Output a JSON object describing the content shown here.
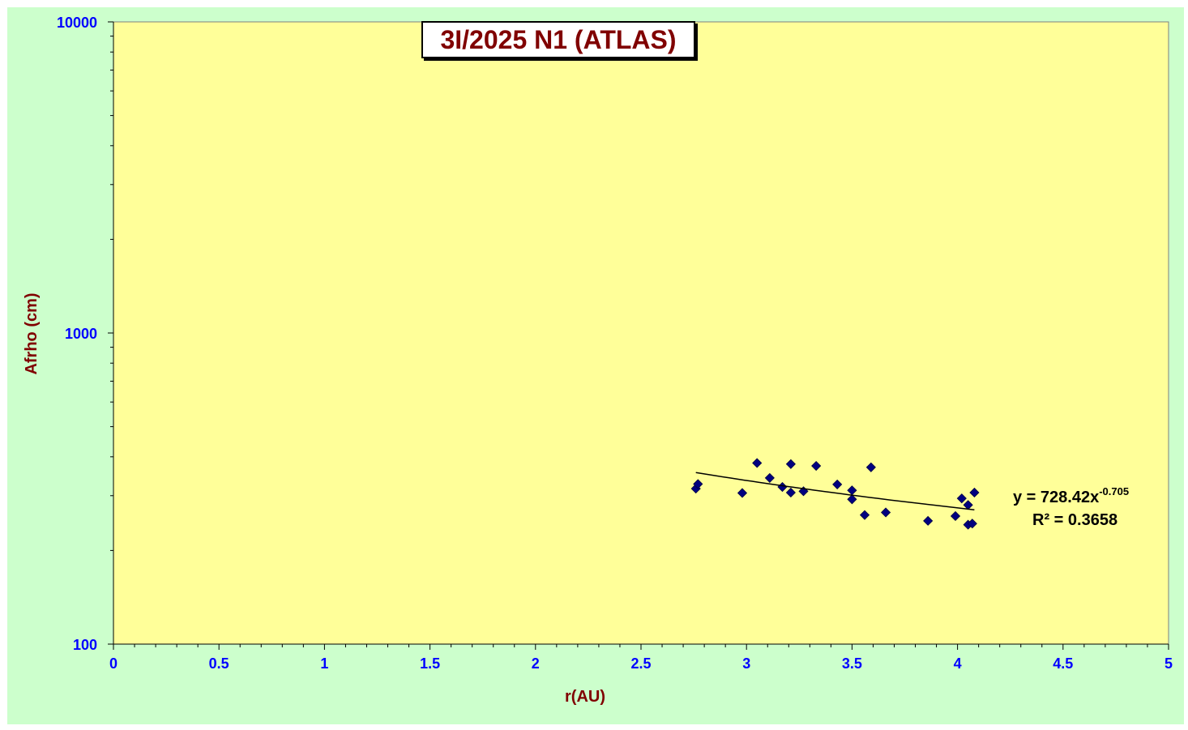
{
  "chart_data": {
    "type": "scatter",
    "title": "3I/2025 N1 (ATLAS)",
    "xlabel": "r(AU)",
    "ylabel": "Afrho (cm)",
    "xlim": [
      0,
      5
    ],
    "ylim": [
      100,
      10000
    ],
    "yscale": "log",
    "x_ticks": [
      "0",
      "0.5",
      "1",
      "1.5",
      "2",
      "2.5",
      "3",
      "3.5",
      "4",
      "4.5",
      "5"
    ],
    "y_ticks": [
      "100",
      "1000",
      "10000"
    ],
    "grid": false,
    "points": [
      {
        "x": 2.76,
        "y": 316
      },
      {
        "x": 2.77,
        "y": 327
      },
      {
        "x": 2.98,
        "y": 306
      },
      {
        "x": 3.05,
        "y": 382
      },
      {
        "x": 3.11,
        "y": 342
      },
      {
        "x": 3.17,
        "y": 320
      },
      {
        "x": 3.21,
        "y": 379
      },
      {
        "x": 3.21,
        "y": 307
      },
      {
        "x": 3.27,
        "y": 310
      },
      {
        "x": 3.33,
        "y": 374
      },
      {
        "x": 3.43,
        "y": 326
      },
      {
        "x": 3.5,
        "y": 312
      },
      {
        "x": 3.5,
        "y": 292
      },
      {
        "x": 3.56,
        "y": 260
      },
      {
        "x": 3.59,
        "y": 370
      },
      {
        "x": 3.66,
        "y": 265
      },
      {
        "x": 3.86,
        "y": 249
      },
      {
        "x": 3.99,
        "y": 258
      },
      {
        "x": 4.02,
        "y": 294
      },
      {
        "x": 4.05,
        "y": 280
      },
      {
        "x": 4.05,
        "y": 242
      },
      {
        "x": 4.07,
        "y": 244
      },
      {
        "x": 4.08,
        "y": 307
      }
    ],
    "trendline": {
      "type": "power",
      "coefficient": 728.42,
      "exponent": -0.705,
      "x_range": [
        2.76,
        4.08
      ],
      "equation_prefix": "y = 728.42x",
      "equation_exponent": "-0.705",
      "r_squared": "R² = 0.3658"
    },
    "colors": {
      "outer_background": "#ccffcc",
      "plot_background": "#ffff99",
      "marker": "#000080",
      "tick_label": "#0000ff",
      "axis_title": "#800000",
      "title_text": "#800000"
    }
  }
}
